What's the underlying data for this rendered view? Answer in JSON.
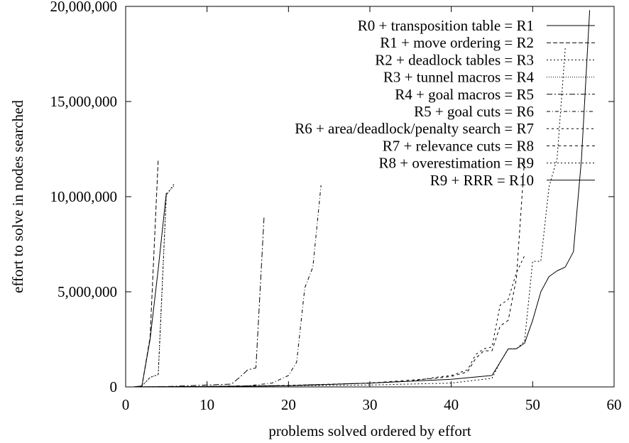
{
  "chart_data": {
    "type": "line",
    "title": "",
    "xlabel": "problems solved ordered by effort",
    "ylabel": "effort to solve in nodes searched",
    "xlim": [
      0,
      60
    ],
    "ylim": [
      0,
      20000000
    ],
    "x_ticks": [
      0,
      10,
      20,
      30,
      40,
      50,
      60
    ],
    "x_tick_labels": [
      "0",
      "10",
      "20",
      "30",
      "40",
      "50",
      "60"
    ],
    "y_ticks": [
      0,
      5000000,
      10000000,
      15000000,
      20000000
    ],
    "y_tick_labels": [
      "0",
      "5,000,000",
      "10,000,000",
      "15,000,000",
      "20,000,000"
    ],
    "grid": false,
    "legend_position": "top-right",
    "series": [
      {
        "name": "R0 + transposition table = R1",
        "dash": "",
        "x": [
          1,
          2,
          3,
          4,
          5
        ],
        "y": [
          0,
          50000,
          2500000,
          6200000,
          10200000
        ]
      },
      {
        "name": "R1 + move ordering = R2",
        "dash": "6,3",
        "x": [
          1,
          2,
          3,
          4
        ],
        "y": [
          0,
          50000,
          2600000,
          12000000
        ]
      },
      {
        "name": "R2 + deadlock tables = R3",
        "dash": "2,3",
        "x": [
          1,
          2,
          3,
          4,
          5,
          6
        ],
        "y": [
          0,
          50000,
          500000,
          650000,
          10100000,
          10700000
        ]
      },
      {
        "name": "R3 + tunnel macros = R4",
        "dash": "1,2",
        "x": [
          1,
          2,
          3,
          4,
          5,
          6
        ],
        "y": [
          0,
          50000,
          500000,
          650000,
          10100000,
          10600000
        ]
      },
      {
        "name": "R4 + goal macros = R5",
        "dash": "8,3,2,3",
        "x": [
          1,
          5,
          10,
          13,
          14,
          15,
          16,
          17
        ],
        "y": [
          0,
          20000,
          100000,
          150000,
          500000,
          900000,
          1000000,
          8900000
        ]
      },
      {
        "name": "R5 + goal cuts = R6",
        "dash": "5,3,1,3",
        "x": [
          1,
          5,
          10,
          15,
          18,
          20,
          21,
          22,
          23,
          24
        ],
        "y": [
          0,
          10000,
          30000,
          60000,
          200000,
          600000,
          1300000,
          5200000,
          6300000,
          10600000
        ]
      },
      {
        "name": "R6 + area/deadlock/penalty search = R7",
        "dash": "3,4",
        "x": [
          1,
          10,
          20,
          30,
          35,
          38,
          40,
          42,
          43,
          44,
          45,
          46,
          47,
          48,
          49
        ],
        "y": [
          0,
          20000,
          80000,
          200000,
          300000,
          500000,
          600000,
          900000,
          1700000,
          2000000,
          2100000,
          4300000,
          4600000,
          6000000,
          6900000
        ]
      },
      {
        "name": "R7 + relevance cuts = R8",
        "dash": "4,4",
        "x": [
          1,
          10,
          20,
          30,
          38,
          40,
          42,
          43,
          44,
          45,
          46,
          47,
          48,
          49
        ],
        "y": [
          0,
          20000,
          80000,
          200000,
          450000,
          550000,
          800000,
          1500000,
          1900000,
          1900000,
          3200000,
          3500000,
          5700000,
          12000000
        ]
      },
      {
        "name": "R8 + overestimation = R9",
        "dash": "2,3",
        "x": [
          1,
          10,
          20,
          30,
          40,
          45,
          46,
          47,
          48,
          49,
          50,
          51,
          52,
          53,
          54
        ],
        "y": [
          0,
          20000,
          60000,
          100000,
          200000,
          450000,
          1300000,
          2000000,
          2000000,
          2400000,
          6600000,
          6600000,
          10500000,
          12000000,
          17800000
        ]
      },
      {
        "name": "R9 + RRR = R10",
        "dash": "",
        "x": [
          1,
          10,
          20,
          30,
          40,
          45,
          46,
          47,
          48,
          49,
          50,
          51,
          52,
          53,
          54,
          55,
          56,
          57
        ],
        "y": [
          0,
          20000,
          60000,
          200000,
          400000,
          600000,
          1300000,
          2000000,
          2000000,
          2300000,
          3500000,
          5000000,
          5800000,
          6100000,
          6300000,
          7100000,
          12000000,
          19800000
        ]
      }
    ]
  }
}
